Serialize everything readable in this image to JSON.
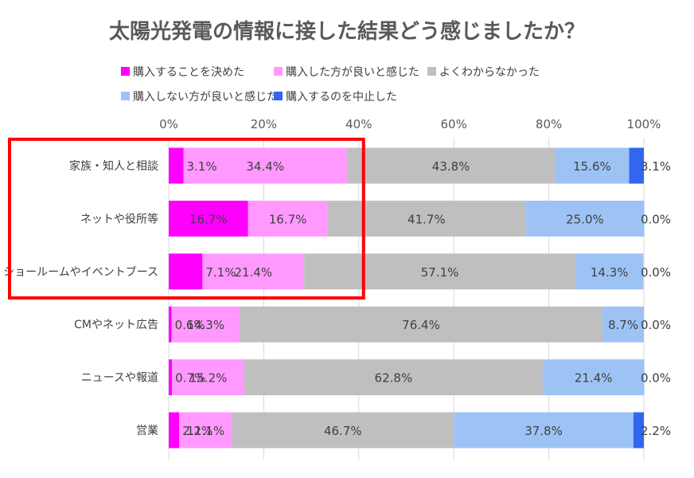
{
  "chart_data": {
    "type": "bar",
    "orientation": "horizontal",
    "stacked": "percent",
    "title": "太陽光発電の情報に接した結果どう感じましたか？",
    "categories": [
      "家族・知人と相談",
      "ネットや役所等",
      "ショールームやイベントブース",
      "CMやネット広告",
      "ニュースや報道",
      "営業"
    ],
    "series": [
      {
        "name": "購入することを決めた",
        "color": "#ff00ff",
        "values": [
          3.1,
          16.7,
          7.1,
          0.6,
          0.7,
          2.2
        ]
      },
      {
        "name": "購入した方が良いと感じた",
        "color": "#ff99ff",
        "values": [
          34.4,
          16.7,
          21.4,
          14.3,
          15.2,
          11.1
        ]
      },
      {
        "name": "よくわからなかった",
        "color": "#bfbfbf",
        "values": [
          43.8,
          41.7,
          57.1,
          76.4,
          62.8,
          46.7
        ]
      },
      {
        "name": "購入しない方が良いと感じた",
        "color": "#9dc3f5",
        "values": [
          15.6,
          25.0,
          14.3,
          8.7,
          21.4,
          37.8
        ]
      },
      {
        "name": "購入するのを中止した",
        "color": "#3366ee",
        "values": [
          3.1,
          0.0,
          0.0,
          0.0,
          0.0,
          2.2
        ]
      }
    ],
    "value_labels": [
      [
        "3.1%",
        "34.4%",
        "43.8%",
        "15.6%",
        "3.1%"
      ],
      [
        "16.7%",
        "16.7%",
        "41.7%",
        "25.0%",
        "0.0%"
      ],
      [
        "7.1%",
        "21.4%",
        "57.1%",
        "14.3%",
        "0.0%"
      ],
      [
        "0.6%",
        "14.3%",
        "76.4%",
        "8.7%",
        "0.0%"
      ],
      [
        "0.7%",
        "15.2%",
        "62.8%",
        "21.4%",
        "0.0%"
      ],
      [
        "2.2%",
        "11.1%",
        "46.7%",
        "37.8%",
        "2.2%"
      ]
    ],
    "x_ticks": [
      "0%",
      "20%",
      "40%",
      "60%",
      "80%",
      "100%"
    ],
    "xlim": [
      0,
      100
    ],
    "grid": true,
    "legend_position": "top",
    "highlight": {
      "categories": [
        0,
        1,
        2
      ],
      "color": "#ff0000"
    }
  }
}
